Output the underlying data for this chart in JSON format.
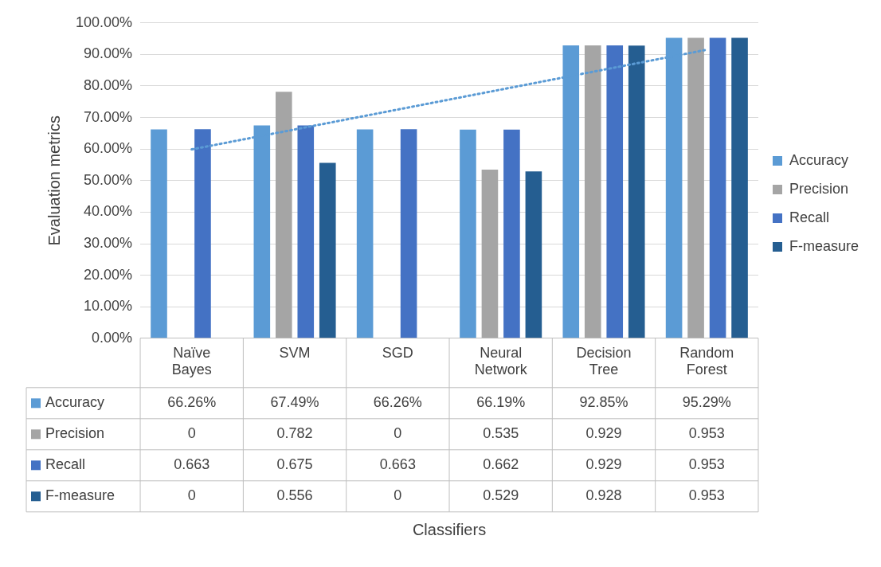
{
  "chart_data": {
    "type": "bar",
    "ylabel": "Evaluation metrics",
    "annotations": [
      "Classifiers"
    ],
    "categories": [
      "Naïve Bayes",
      "SVM",
      "SGD",
      "Neural Network",
      "Decision Tree",
      "Random Forest"
    ],
    "ylim": [
      0,
      1
    ],
    "yticks": [
      {
        "value": 0,
        "label": "0.00%"
      },
      {
        "value": 0.1,
        "label": "10.00%"
      },
      {
        "value": 0.2,
        "label": "20.00%"
      },
      {
        "value": 0.3,
        "label": "30.00%"
      },
      {
        "value": 0.4,
        "label": "40.00%"
      },
      {
        "value": 0.5,
        "label": "50.00%"
      },
      {
        "value": 0.6,
        "label": "60.00%"
      },
      {
        "value": 0.7,
        "label": "70.00%"
      },
      {
        "value": 0.8,
        "label": "80.00%"
      },
      {
        "value": 0.9,
        "label": "90.00%"
      },
      {
        "value": 1,
        "label": "100.00%"
      }
    ],
    "grid": "y",
    "legend": "right",
    "series": [
      {
        "name": "Accuracy",
        "color": "#5b9bd5",
        "values": [
          0.6626,
          0.6749,
          0.6626,
          0.6619,
          0.9285,
          0.9529
        ],
        "value_labels": [
          "66.26%",
          "67.49%",
          "66.26%",
          "66.19%",
          "92.85%",
          "95.29%"
        ]
      },
      {
        "name": "Precision",
        "color": "#a5a5a5",
        "values": [
          0,
          0.782,
          0,
          0.535,
          0.929,
          0.953
        ],
        "value_labels": [
          "0",
          "0.782",
          "0",
          "0.535",
          "0.929",
          "0.953"
        ]
      },
      {
        "name": "Recall",
        "color": "#4472c4",
        "values": [
          0.663,
          0.675,
          0.663,
          0.662,
          0.929,
          0.953
        ],
        "value_labels": [
          "0.663",
          "0.675",
          "0.663",
          "0.662",
          "0.929",
          "0.953"
        ]
      },
      {
        "name": "F-measure",
        "color": "#255e91",
        "values": [
          0,
          0.556,
          0,
          0.529,
          0.928,
          0.953
        ],
        "value_labels": [
          "0",
          "0.556",
          "0",
          "0.529",
          "0.928",
          "0.953"
        ]
      },
      {
        "type": "line",
        "color": "#5b9bd5",
        "x": [
          "Naïve Bayes",
          "Random Forest"
        ],
        "values": [
          0.599,
          0.915
        ],
        "line_style": "dotted",
        "marker": "none"
      }
    ]
  }
}
